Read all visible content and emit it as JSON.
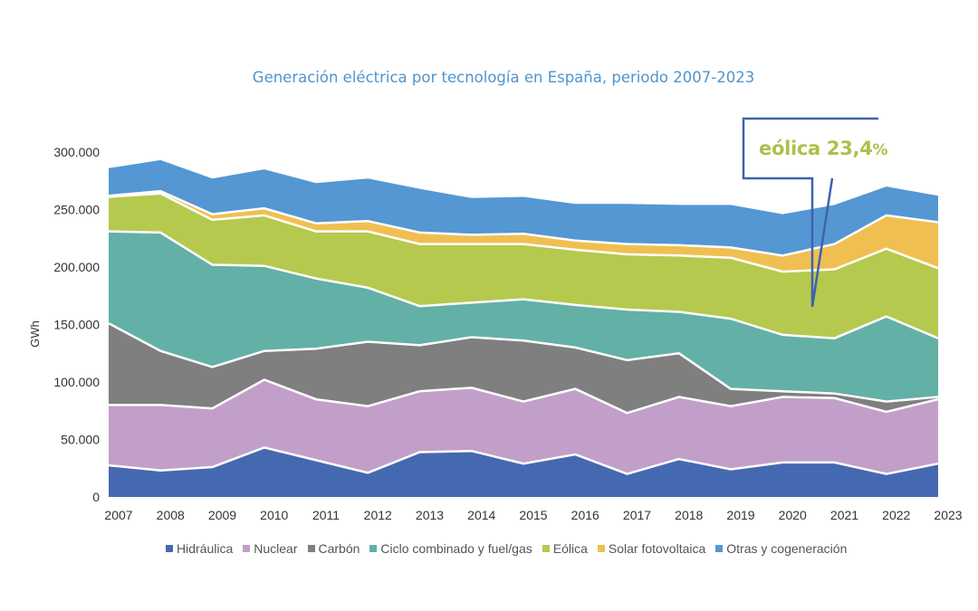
{
  "chart_data": {
    "type": "area",
    "stacked": true,
    "title": "Generación eléctrica por tecnología en España, periodo 2007-2023",
    "xlabel": "",
    "ylabel": "GWh",
    "ylim": [
      0,
      300000
    ],
    "yticks": [
      0,
      50000,
      100000,
      150000,
      200000,
      250000,
      300000
    ],
    "ytick_labels": [
      "0",
      "50.000",
      "100.000",
      "150.000",
      "200.000",
      "250.000",
      "300.000"
    ],
    "grid": false,
    "legend_position": "bottom",
    "categories": [
      "2007",
      "2008",
      "2009",
      "2010",
      "2011",
      "2012",
      "2013",
      "2014",
      "2015",
      "2016",
      "2017",
      "2018",
      "2019",
      "2020",
      "2021",
      "2022",
      "2023"
    ],
    "series": [
      {
        "name": "Hidráulica",
        "color": "#4569b0",
        "values": [
          27500,
          23000,
          26000,
          43000,
          32000,
          21000,
          39000,
          40000,
          29000,
          37000,
          20000,
          33000,
          24000,
          30000,
          30000,
          20000,
          29000
        ]
      },
      {
        "name": "Nuclear",
        "color": "#c29fc8",
        "values": [
          52500,
          57000,
          51000,
          59000,
          53000,
          58000,
          53000,
          55000,
          54000,
          57000,
          53000,
          54000,
          55000,
          57000,
          56000,
          54000,
          56000
        ]
      },
      {
        "name": "Carbón",
        "color": "#7f7f80",
        "values": [
          71000,
          47000,
          36000,
          25000,
          44000,
          56000,
          40000,
          44000,
          53000,
          36000,
          46000,
          38000,
          15000,
          5000,
          4000,
          9000,
          2000
        ]
      },
      {
        "name": "Ciclo combinado y fuel/gas",
        "color": "#63b0a6",
        "values": [
          80000,
          103000,
          89000,
          74000,
          61000,
          47000,
          34000,
          30000,
          36000,
          37000,
          44000,
          36000,
          61000,
          49000,
          48000,
          74000,
          51000
        ]
      },
      {
        "name": "Eólica",
        "color": "#b5c94e",
        "values": [
          30000,
          34000,
          39000,
          44000,
          41000,
          49000,
          54000,
          51000,
          48000,
          48000,
          48000,
          49000,
          53000,
          55000,
          60000,
          59000,
          61000
        ]
      },
      {
        "name": "Solar fotovoltaica",
        "color": "#efc051",
        "values": [
          1000,
          2000,
          5000,
          6000,
          7000,
          9000,
          10000,
          8000,
          9000,
          8000,
          9000,
          9000,
          9000,
          14000,
          22000,
          29000,
          40000
        ]
      },
      {
        "name": "Otras y cogeneración",
        "color": "#5497d3",
        "values": [
          24000,
          27000,
          31000,
          34000,
          35000,
          37000,
          38000,
          32000,
          32000,
          32000,
          35000,
          35000,
          37000,
          36000,
          34000,
          25000,
          23000
        ]
      }
    ],
    "annotations": [
      {
        "text": "eólica 23,4%",
        "label_main": "eólica 23,4",
        "label_suffix": "%",
        "points_to": {
          "x": "2021",
          "series": "Eólica"
        }
      }
    ]
  }
}
